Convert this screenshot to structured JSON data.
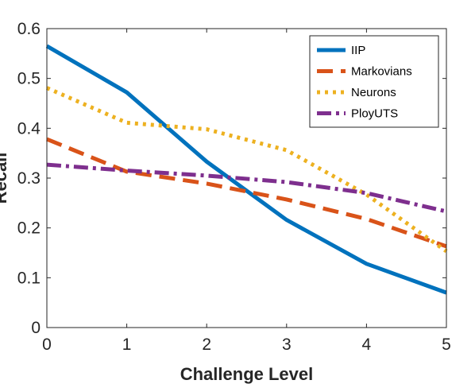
{
  "chart_data": {
    "type": "line",
    "xlabel": "Challenge Level",
    "ylabel": "Recall",
    "xlim": [
      0,
      5
    ],
    "ylim": [
      0,
      0.6
    ],
    "xticks": [
      "0",
      "1",
      "2",
      "3",
      "4",
      "5"
    ],
    "yticks": [
      "0",
      "0.1",
      "0.2",
      "0.3",
      "0.4",
      "0.5",
      "0.6"
    ],
    "grid": false,
    "legend_position": "top-right",
    "series": [
      {
        "name": "IIP",
        "color": "#0072BD",
        "dash": "solid",
        "x": [
          0,
          1,
          2,
          3,
          4,
          5
        ],
        "y": [
          0.565,
          0.472,
          0.333,
          0.216,
          0.128,
          0.07
        ]
      },
      {
        "name": "Markovians",
        "color": "#D95319",
        "dash": "dashed",
        "x": [
          0,
          1,
          2,
          3,
          4,
          5
        ],
        "y": [
          0.378,
          0.313,
          0.289,
          0.257,
          0.218,
          0.163
        ]
      },
      {
        "name": "Neurons",
        "color": "#EDB120",
        "dash": "dotted",
        "x": [
          0,
          1,
          2,
          3,
          4,
          5
        ],
        "y": [
          0.481,
          0.411,
          0.398,
          0.356,
          0.267,
          0.153
        ]
      },
      {
        "name": "PloyUTS",
        "color": "#7E2F8E",
        "dash": "dashdot",
        "x": [
          0,
          1,
          2,
          3,
          4,
          5
        ],
        "y": [
          0.327,
          0.315,
          0.305,
          0.292,
          0.27,
          0.233
        ]
      }
    ]
  }
}
